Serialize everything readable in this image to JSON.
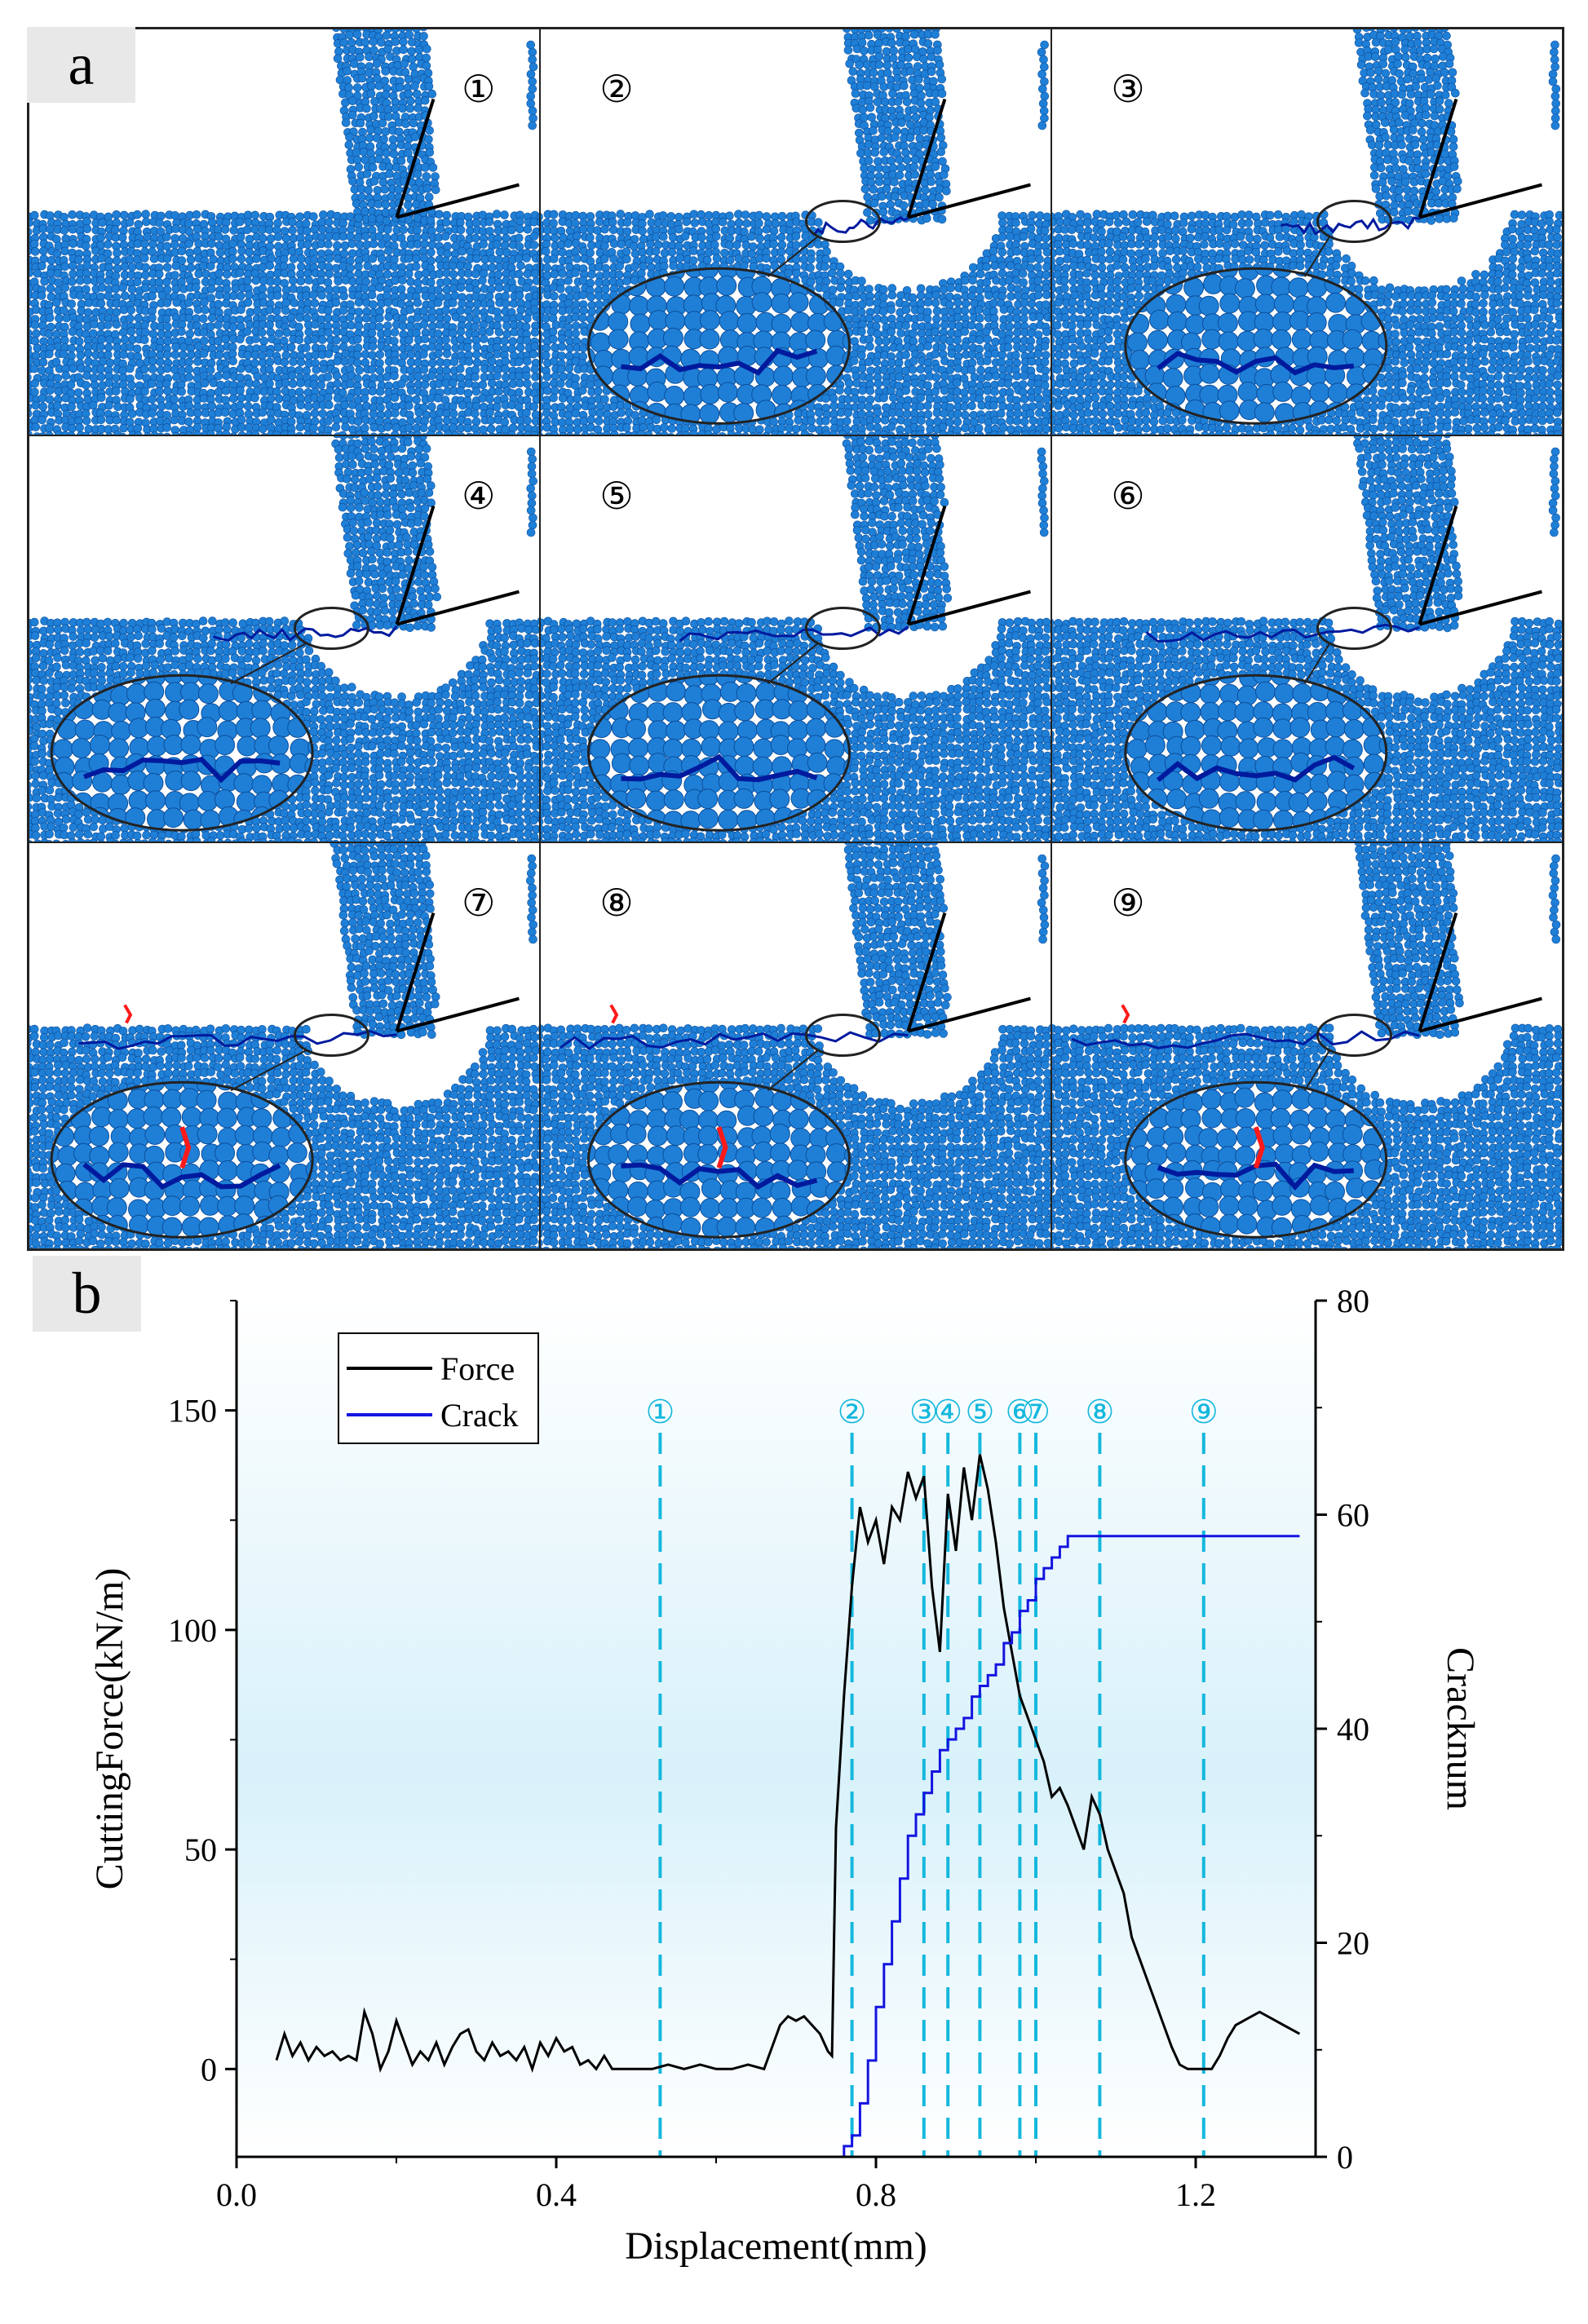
{
  "figure": {
    "panel_a_label": "a",
    "panel_b_label": "b"
  },
  "simulation_frames": [
    {
      "id": "①",
      "zoom": false
    },
    {
      "id": "②",
      "zoom": true
    },
    {
      "id": "③",
      "zoom": true
    },
    {
      "id": "④",
      "zoom": true
    },
    {
      "id": "⑤",
      "zoom": true
    },
    {
      "id": "⑥",
      "zoom": true
    },
    {
      "id": "⑦",
      "zoom": true
    },
    {
      "id": "⑧",
      "zoom": true
    },
    {
      "id": "⑨",
      "zoom": true
    }
  ],
  "colors": {
    "particle": "#1f7fd6",
    "particle_edge": "#0a4e9e",
    "crack_blue": "#001a9e",
    "crack_red": "#ff1a1a",
    "force_line": "#000000",
    "crack_line": "#1414e0",
    "marker": "#14b8dd",
    "bg_gradient": "#d8f1fa"
  },
  "chart_data": {
    "type": "line",
    "xlabel": "Displacement(mm)",
    "ylabel_left": "CuttingForce(kN/m)",
    "ylabel_right": "Cracknum",
    "xlim": [
      0.0,
      1.35
    ],
    "ylim_left": [
      -20,
      175
    ],
    "ylim_right": [
      0,
      80
    ],
    "xticks": [
      "0.0",
      "0.4",
      "0.8",
      "1.2"
    ],
    "yticks_left": [
      "0",
      "50",
      "100",
      "150"
    ],
    "yticks_right": [
      "0",
      "20",
      "40",
      "60",
      "80"
    ],
    "legend": {
      "position": "top-left",
      "entries": [
        "Force",
        "Crack"
      ]
    },
    "series": [
      {
        "name": "Force",
        "axis": "left",
        "color": "#000000",
        "x": [
          0.05,
          0.06,
          0.07,
          0.08,
          0.09,
          0.1,
          0.11,
          0.12,
          0.13,
          0.14,
          0.15,
          0.16,
          0.17,
          0.18,
          0.19,
          0.2,
          0.21,
          0.22,
          0.23,
          0.24,
          0.25,
          0.26,
          0.27,
          0.28,
          0.29,
          0.3,
          0.31,
          0.32,
          0.33,
          0.34,
          0.35,
          0.36,
          0.37,
          0.38,
          0.39,
          0.4,
          0.41,
          0.42,
          0.43,
          0.44,
          0.45,
          0.46,
          0.47,
          0.48,
          0.5,
          0.52,
          0.54,
          0.56,
          0.58,
          0.6,
          0.62,
          0.64,
          0.66,
          0.68,
          0.69,
          0.7,
          0.71,
          0.72,
          0.73,
          0.74,
          0.745,
          0.75,
          0.76,
          0.77,
          0.78,
          0.79,
          0.8,
          0.81,
          0.82,
          0.83,
          0.84,
          0.85,
          0.86,
          0.87,
          0.88,
          0.89,
          0.9,
          0.91,
          0.92,
          0.93,
          0.94,
          0.95,
          0.96,
          0.97,
          0.98,
          0.99,
          1.0,
          1.01,
          1.02,
          1.03,
          1.04,
          1.05,
          1.06,
          1.07,
          1.08,
          1.09,
          1.1,
          1.11,
          1.12,
          1.13,
          1.14,
          1.15,
          1.16,
          1.17,
          1.18,
          1.19,
          1.2,
          1.21,
          1.22,
          1.23,
          1.24,
          1.25,
          1.26,
          1.27,
          1.28,
          1.29,
          1.3,
          1.31,
          1.32,
          1.33
        ],
        "values": [
          2,
          8,
          3,
          6,
          2,
          5,
          3,
          4,
          2,
          3,
          2,
          13,
          8,
          0,
          4,
          11,
          6,
          1,
          4,
          2,
          6,
          1,
          5,
          8,
          9,
          4,
          2,
          6,
          3,
          4,
          2,
          5,
          0,
          6,
          3,
          7,
          4,
          5,
          1,
          2,
          0,
          3,
          0,
          0,
          0,
          0,
          1,
          0,
          1,
          0,
          0,
          1,
          0,
          10,
          12,
          11,
          12,
          10,
          8,
          4,
          3,
          55,
          85,
          110,
          128,
          120,
          125,
          115,
          128,
          125,
          136,
          130,
          135,
          110,
          95,
          131,
          118,
          137,
          125,
          140,
          132,
          120,
          105,
          95,
          85,
          80,
          75,
          70,
          62,
          64,
          60,
          55,
          50,
          62,
          58,
          50,
          45,
          40,
          30,
          25,
          20,
          15,
          10,
          5,
          1,
          0,
          0,
          0,
          0,
          3,
          7,
          10,
          11,
          12,
          13,
          12,
          11,
          10,
          9,
          8
        ],
        "note_x_source": "read from axis"
      },
      {
        "name": "Crack",
        "axis": "right",
        "color": "#1414e0",
        "x": [
          0.75,
          0.76,
          0.77,
          0.78,
          0.79,
          0.8,
          0.81,
          0.82,
          0.83,
          0.84,
          0.85,
          0.86,
          0.87,
          0.88,
          0.89,
          0.9,
          0.91,
          0.92,
          0.93,
          0.94,
          0.95,
          0.96,
          0.97,
          0.98,
          0.99,
          1.0,
          1.01,
          1.02,
          1.03,
          1.04,
          1.05,
          1.1,
          1.15,
          1.2,
          1.25,
          1.3,
          1.33
        ],
        "values": [
          0,
          1,
          2,
          5,
          9,
          14,
          18,
          22,
          26,
          30,
          32,
          34,
          36,
          38,
          39,
          40,
          41,
          43,
          44,
          45,
          46,
          48,
          49,
          51,
          52,
          54,
          55,
          56,
          57,
          58,
          58,
          58,
          58,
          58,
          58,
          58,
          58
        ]
      }
    ],
    "markers": [
      {
        "label": "①",
        "x": 0.53
      },
      {
        "label": "②",
        "x": 0.77
      },
      {
        "label": "③",
        "x": 0.86
      },
      {
        "label": "④",
        "x": 0.89
      },
      {
        "label": "⑤",
        "x": 0.93
      },
      {
        "label": "⑥",
        "x": 0.98
      },
      {
        "label": "⑦",
        "x": 1.0
      },
      {
        "label": "⑧",
        "x": 1.08
      },
      {
        "label": "⑨",
        "x": 1.21
      }
    ]
  }
}
